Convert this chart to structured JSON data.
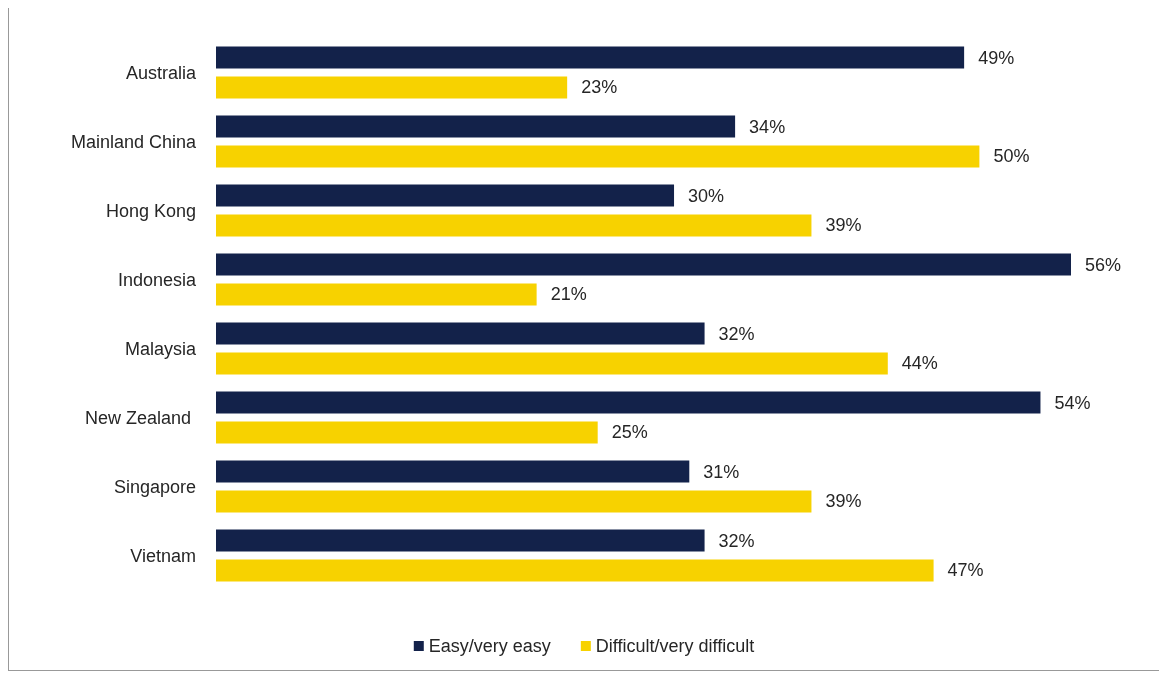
{
  "chart_data": {
    "type": "bar",
    "orientation": "horizontal",
    "categories": [
      "Australia",
      "Mainland China",
      "Hong Kong",
      "Indonesia",
      "Malaysia",
      "New Zealand ",
      "Singapore",
      "Vietnam"
    ],
    "series": [
      {
        "name": "Easy/very easy",
        "color": "#13224a",
        "values": [
          49,
          34,
          30,
          56,
          32,
          54,
          31,
          32
        ],
        "value_labels": [
          "49%",
          "34%",
          "30%",
          "56%",
          "32%",
          "54%",
          "31%",
          "32%"
        ]
      },
      {
        "name": "Difficult/very difficult",
        "color": "#f7d200",
        "values": [
          23,
          50,
          39,
          21,
          44,
          25,
          39,
          47
        ],
        "value_labels": [
          "23%",
          "50%",
          "39%",
          "21%",
          "44%",
          "25%",
          "39%",
          "47%"
        ]
      }
    ],
    "legend": "bottom",
    "tick_labels": "y"
  }
}
